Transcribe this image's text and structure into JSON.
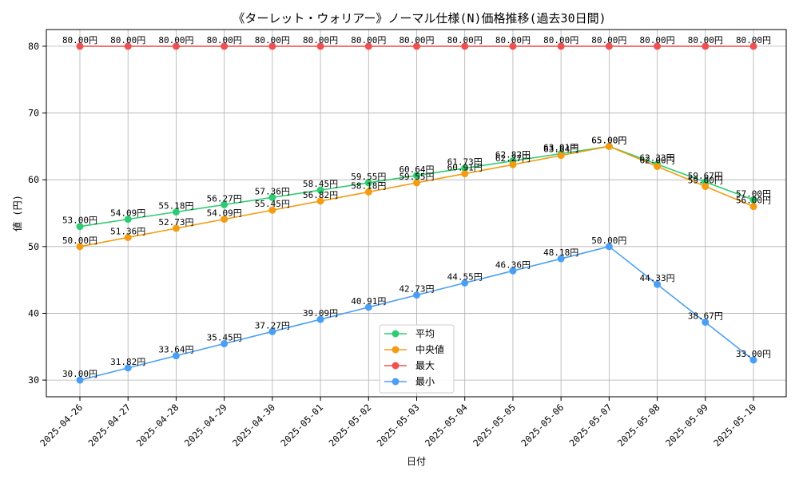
{
  "chart_data": {
    "type": "line",
    "title": "《ターレット・ウォリアー》ノーマル仕様(N)価格推移(過去30日間)",
    "xlabel": "日付",
    "ylabel": "値 (円)",
    "ylim": [
      27.5,
      82.5
    ],
    "yticks": [
      30,
      40,
      50,
      60,
      70,
      80
    ],
    "grid": true,
    "legend_position": "bottom-center",
    "value_suffix": "円",
    "categories": [
      "2025-04-26",
      "2025-04-27",
      "2025-04-28",
      "2025-04-29",
      "2025-04-30",
      "2025-05-01",
      "2025-05-02",
      "2025-05-03",
      "2025-05-04",
      "2025-05-05",
      "2025-05-06",
      "2025-05-07",
      "2025-05-08",
      "2025-05-09",
      "2025-05-10"
    ],
    "series": [
      {
        "name": "平均",
        "color": "#2ecc71",
        "values": [
          53.0,
          54.09,
          55.18,
          56.27,
          57.36,
          58.45,
          59.55,
          60.64,
          61.73,
          62.82,
          63.91,
          65.0,
          62.33,
          59.67,
          57.0
        ]
      },
      {
        "name": "中央値",
        "color": "#f39c12",
        "values": [
          50.0,
          51.36,
          52.73,
          54.09,
          55.45,
          56.82,
          58.18,
          59.55,
          60.91,
          62.27,
          63.64,
          65.0,
          62.0,
          59.0,
          56.0
        ]
      },
      {
        "name": "最大",
        "color": "#f05050",
        "values": [
          80.0,
          80.0,
          80.0,
          80.0,
          80.0,
          80.0,
          80.0,
          80.0,
          80.0,
          80.0,
          80.0,
          80.0,
          80.0,
          80.0,
          80.0
        ]
      },
      {
        "name": "最小",
        "color": "#4a9ff5",
        "values": [
          30.0,
          31.82,
          33.64,
          35.45,
          37.27,
          39.09,
          40.91,
          42.73,
          44.55,
          46.36,
          48.18,
          50.0,
          44.33,
          38.67,
          33.0
        ]
      }
    ]
  }
}
